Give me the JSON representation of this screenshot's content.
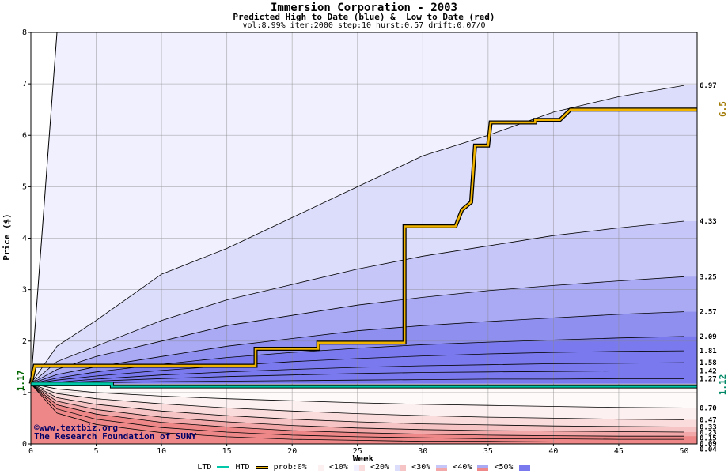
{
  "header": {
    "title": "Immersion Corporation - 2003",
    "subtitle": "Predicted High to Date (blue) &  Low to Date (red)",
    "params": "vol:8.99% iter:2000 step:10 hurst:0.57 drift:0.07/0"
  },
  "watermark": {
    "line1": "©www.textbiz.org",
    "line2": "The Research Foundation of SUNY"
  },
  "legend": {
    "ltd": "LTD",
    "htd": "HTD",
    "prob": "prob:0%",
    "b10": "<10%",
    "b20": "<20%",
    "b30": "<30%",
    "b40": "<40%",
    "b50": "<50%"
  },
  "colors": {
    "blue_bands": [
      "#f0f0fe",
      "#dcdcfb",
      "#c6c6f8",
      "#a9a9f4",
      "#8f8ff0",
      "#7a7aee"
    ],
    "red_bands": [
      "#fdf0f0",
      "#fadcdc",
      "#f6c4c4",
      "#f2a8a8",
      "#ee8888"
    ],
    "htd_line": "#f0b400",
    "ltd_line": "#00c8a8"
  },
  "chart_data": {
    "type": "area",
    "title": "Immersion Corporation - 2003",
    "xlabel": "Week",
    "ylabel": "Price ($)",
    "xlim": [
      0,
      51
    ],
    "ylim": [
      0,
      8
    ],
    "xticks": [
      0,
      5,
      10,
      15,
      20,
      25,
      30,
      35,
      40,
      45,
      50
    ],
    "yticks": [
      0,
      1,
      2,
      3,
      4,
      5,
      6,
      7,
      8
    ],
    "grid": true,
    "start_price": 1.17,
    "start_label": "1.17",
    "high_series": [
      {
        "label": "6.97",
        "value": 6.97,
        "points": [
          [
            0,
            1.17
          ],
          [
            2,
            1.9
          ],
          [
            5,
            2.4
          ],
          [
            10,
            3.3
          ],
          [
            15,
            3.8
          ],
          [
            20,
            4.4
          ],
          [
            25,
            5.0
          ],
          [
            30,
            5.6
          ],
          [
            35,
            6.0
          ],
          [
            40,
            6.45
          ],
          [
            45,
            6.75
          ],
          [
            50,
            6.97
          ]
        ]
      },
      {
        "label": "4.33",
        "value": 4.33,
        "points": [
          [
            0,
            1.17
          ],
          [
            2,
            1.6
          ],
          [
            5,
            1.9
          ],
          [
            10,
            2.4
          ],
          [
            15,
            2.8
          ],
          [
            20,
            3.1
          ],
          [
            25,
            3.4
          ],
          [
            30,
            3.65
          ],
          [
            35,
            3.85
          ],
          [
            40,
            4.05
          ],
          [
            45,
            4.2
          ],
          [
            50,
            4.33
          ]
        ]
      },
      {
        "label": "3.25",
        "value": 3.25,
        "points": [
          [
            0,
            1.17
          ],
          [
            2,
            1.45
          ],
          [
            5,
            1.7
          ],
          [
            10,
            2.0
          ],
          [
            15,
            2.3
          ],
          [
            20,
            2.5
          ],
          [
            25,
            2.7
          ],
          [
            30,
            2.85
          ],
          [
            35,
            2.98
          ],
          [
            40,
            3.08
          ],
          [
            45,
            3.17
          ],
          [
            50,
            3.25
          ]
        ]
      },
      {
        "label": "2.57",
        "value": 2.57,
        "points": [
          [
            0,
            1.17
          ],
          [
            2,
            1.35
          ],
          [
            5,
            1.5
          ],
          [
            10,
            1.7
          ],
          [
            15,
            1.9
          ],
          [
            20,
            2.05
          ],
          [
            25,
            2.2
          ],
          [
            30,
            2.3
          ],
          [
            35,
            2.38
          ],
          [
            40,
            2.45
          ],
          [
            45,
            2.52
          ],
          [
            50,
            2.57
          ]
        ]
      },
      {
        "label": "2.09",
        "value": 2.09,
        "points": [
          [
            0,
            1.17
          ],
          [
            2,
            1.28
          ],
          [
            5,
            1.4
          ],
          [
            10,
            1.55
          ],
          [
            15,
            1.68
          ],
          [
            20,
            1.78
          ],
          [
            25,
            1.86
          ],
          [
            30,
            1.93
          ],
          [
            35,
            1.98
          ],
          [
            40,
            2.02
          ],
          [
            45,
            2.06
          ],
          [
            50,
            2.09
          ]
        ]
      },
      {
        "label": "1.81",
        "value": 1.81,
        "points": [
          [
            0,
            1.17
          ],
          [
            2,
            1.24
          ],
          [
            5,
            1.32
          ],
          [
            10,
            1.43
          ],
          [
            15,
            1.52
          ],
          [
            20,
            1.6
          ],
          [
            25,
            1.66
          ],
          [
            30,
            1.71
          ],
          [
            35,
            1.75
          ],
          [
            40,
            1.78
          ],
          [
            45,
            1.8
          ],
          [
            50,
            1.81
          ]
        ]
      },
      {
        "label": "1.58",
        "value": 1.58,
        "points": [
          [
            0,
            1.17
          ],
          [
            2,
            1.2
          ],
          [
            5,
            1.26
          ],
          [
            10,
            1.34
          ],
          [
            15,
            1.4
          ],
          [
            20,
            1.45
          ],
          [
            25,
            1.49
          ],
          [
            30,
            1.52
          ],
          [
            35,
            1.54
          ],
          [
            40,
            1.56
          ],
          [
            45,
            1.57
          ],
          [
            50,
            1.58
          ]
        ]
      },
      {
        "label": "1.42",
        "value": 1.42,
        "points": [
          [
            0,
            1.17
          ],
          [
            2,
            1.19
          ],
          [
            5,
            1.22
          ],
          [
            10,
            1.27
          ],
          [
            15,
            1.31
          ],
          [
            20,
            1.34
          ],
          [
            25,
            1.37
          ],
          [
            30,
            1.39
          ],
          [
            35,
            1.4
          ],
          [
            40,
            1.41
          ],
          [
            45,
            1.42
          ],
          [
            50,
            1.42
          ]
        ]
      },
      {
        "label": "1.27",
        "value": 1.27,
        "points": [
          [
            0,
            1.17
          ],
          [
            2,
            1.18
          ],
          [
            5,
            1.19
          ],
          [
            10,
            1.21
          ],
          [
            15,
            1.22
          ],
          [
            20,
            1.23
          ],
          [
            25,
            1.24
          ],
          [
            30,
            1.25
          ],
          [
            35,
            1.26
          ],
          [
            40,
            1.26
          ],
          [
            45,
            1.27
          ],
          [
            50,
            1.27
          ]
        ]
      }
    ],
    "low_series": [
      {
        "label": "0.70",
        "value": 0.7,
        "points": [
          [
            0,
            1.17
          ],
          [
            2,
            1.07
          ],
          [
            5,
            1.0
          ],
          [
            10,
            0.93
          ],
          [
            15,
            0.88
          ],
          [
            20,
            0.84
          ],
          [
            25,
            0.8
          ],
          [
            30,
            0.77
          ],
          [
            35,
            0.75
          ],
          [
            40,
            0.73
          ],
          [
            45,
            0.71
          ],
          [
            50,
            0.7
          ]
        ]
      },
      {
        "label": "0.47",
        "value": 0.47,
        "points": [
          [
            0,
            1.17
          ],
          [
            2,
            0.98
          ],
          [
            5,
            0.88
          ],
          [
            10,
            0.78
          ],
          [
            15,
            0.7
          ],
          [
            20,
            0.64
          ],
          [
            25,
            0.59
          ],
          [
            30,
            0.55
          ],
          [
            35,
            0.52
          ],
          [
            40,
            0.5
          ],
          [
            45,
            0.48
          ],
          [
            50,
            0.47
          ]
        ]
      },
      {
        "label": "0.33",
        "value": 0.33,
        "points": [
          [
            0,
            1.17
          ],
          [
            2,
            0.9
          ],
          [
            5,
            0.77
          ],
          [
            10,
            0.64
          ],
          [
            15,
            0.55
          ],
          [
            20,
            0.48
          ],
          [
            25,
            0.43
          ],
          [
            30,
            0.39
          ],
          [
            35,
            0.37
          ],
          [
            40,
            0.35
          ],
          [
            45,
            0.34
          ],
          [
            50,
            0.33
          ]
        ]
      },
      {
        "label": "0.23",
        "value": 0.23,
        "points": [
          [
            0,
            1.17
          ],
          [
            2,
            0.83
          ],
          [
            5,
            0.67
          ],
          [
            10,
            0.52
          ],
          [
            15,
            0.43
          ],
          [
            20,
            0.36
          ],
          [
            25,
            0.31
          ],
          [
            30,
            0.28
          ],
          [
            35,
            0.26
          ],
          [
            40,
            0.25
          ],
          [
            45,
            0.24
          ],
          [
            50,
            0.23
          ]
        ]
      },
      {
        "label": "0.15",
        "value": 0.15,
        "points": [
          [
            0,
            1.17
          ],
          [
            2,
            0.76
          ],
          [
            5,
            0.58
          ],
          [
            10,
            0.42
          ],
          [
            15,
            0.33
          ],
          [
            20,
            0.26
          ],
          [
            25,
            0.22
          ],
          [
            30,
            0.19
          ],
          [
            35,
            0.17
          ],
          [
            40,
            0.16
          ],
          [
            45,
            0.15
          ],
          [
            50,
            0.15
          ]
        ]
      },
      {
        "label": "0.09",
        "value": 0.09,
        "points": [
          [
            0,
            1.17
          ],
          [
            2,
            0.68
          ],
          [
            5,
            0.48
          ],
          [
            10,
            0.32
          ],
          [
            15,
            0.23
          ],
          [
            20,
            0.17
          ],
          [
            25,
            0.14
          ],
          [
            30,
            0.12
          ],
          [
            35,
            0.1
          ],
          [
            40,
            0.1
          ],
          [
            45,
            0.09
          ],
          [
            50,
            0.09
          ]
        ]
      },
      {
        "label": "0.04",
        "value": 0.04,
        "points": [
          [
            0,
            1.17
          ],
          [
            2,
            0.6
          ],
          [
            5,
            0.38
          ],
          [
            10,
            0.22
          ],
          [
            15,
            0.14
          ],
          [
            20,
            0.09
          ],
          [
            25,
            0.07
          ],
          [
            30,
            0.05
          ],
          [
            35,
            0.05
          ],
          [
            40,
            0.04
          ],
          [
            45,
            0.04
          ],
          [
            50,
            0.04
          ]
        ]
      }
    ],
    "steep_line": [
      [
        0,
        1.17
      ],
      [
        2,
        8.0
      ]
    ],
    "htd_actual": {
      "name": "HTD",
      "points": [
        [
          0,
          1.17
        ],
        [
          0.3,
          1.52
        ],
        [
          17.2,
          1.52
        ],
        [
          17.2,
          1.85
        ],
        [
          22,
          1.85
        ],
        [
          22,
          1.97
        ],
        [
          28.6,
          1.97
        ],
        [
          28.6,
          4.23
        ],
        [
          32.5,
          4.23
        ],
        [
          33,
          4.55
        ],
        [
          33.7,
          4.7
        ],
        [
          34,
          5.8
        ],
        [
          35,
          5.8
        ],
        [
          35.2,
          6.25
        ],
        [
          38.6,
          6.25
        ],
        [
          38.6,
          6.3
        ],
        [
          40.5,
          6.3
        ],
        [
          41.3,
          6.5
        ],
        [
          51,
          6.5
        ]
      ],
      "end_label": "6.5"
    },
    "ltd_actual": {
      "name": "LTD",
      "points": [
        [
          0,
          1.17
        ],
        [
          6.2,
          1.17
        ],
        [
          6.2,
          1.12
        ],
        [
          51,
          1.12
        ]
      ],
      "end_label": "1.12"
    }
  }
}
